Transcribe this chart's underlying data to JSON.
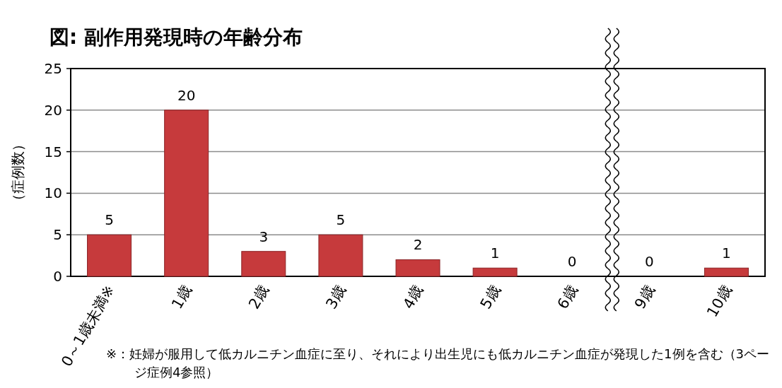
{
  "chart_data": {
    "type": "bar",
    "title": "図:  副作用発現時の年齢分布",
    "ylabel": "（症例数）",
    "categories": [
      "0～1歳未満※",
      "1歳",
      "2歳",
      "3歳",
      "4歳",
      "5歳",
      "6歳",
      "9歳",
      "10歳"
    ],
    "values": [
      5,
      20,
      3,
      5,
      2,
      1,
      0,
      0,
      1
    ],
    "color": "#c63a3c",
    "data_labels": true,
    "ylim": [
      0,
      25
    ],
    "yticks": [
      0,
      5,
      10,
      15,
      20,
      25
    ],
    "grid": "y",
    "annotations": [
      "※：妊婦が服用して低カルニチン血症に至り、それにより出生児にも低カルニチン血症が発現した1例を含む（3ページ症例4参照）"
    ]
  }
}
